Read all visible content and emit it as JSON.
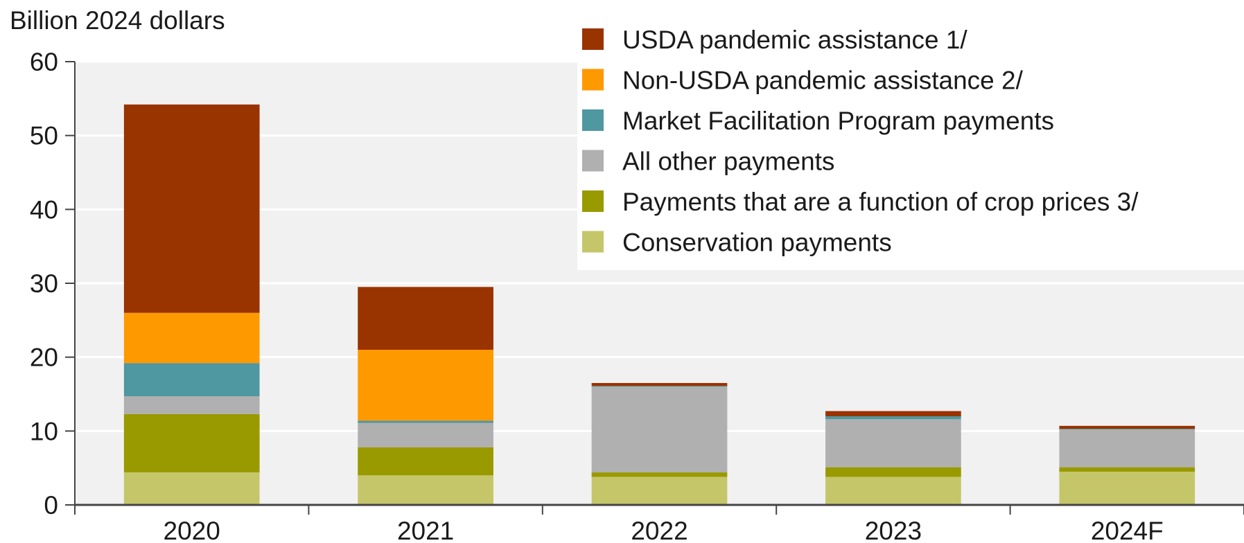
{
  "chart_data": {
    "type": "bar",
    "stacked": true,
    "ylabel": "Billion 2024 dollars",
    "xlabel": "",
    "ylim": [
      0,
      60
    ],
    "yticks": [
      0,
      10,
      20,
      30,
      40,
      50,
      60
    ],
    "grid": "horizontal",
    "legend_position": "top-right",
    "categories": [
      "2020",
      "2021",
      "2022",
      "2023",
      "2024F"
    ],
    "series": [
      {
        "name": "Conservation payments",
        "color": "#c5c66a",
        "values": [
          4.4,
          4.0,
          3.8,
          3.8,
          4.5
        ]
      },
      {
        "name": "Payments that are a function of crop prices 3/",
        "color": "#999900",
        "values": [
          7.9,
          3.8,
          0.6,
          1.3,
          0.6
        ]
      },
      {
        "name": "All other payments",
        "color": "#b0b0b0",
        "values": [
          2.4,
          3.3,
          11.6,
          6.5,
          5.1
        ]
      },
      {
        "name": "Market Facilitation Program payments",
        "color": "#4f97a1",
        "values": [
          4.5,
          0.3,
          0.1,
          0.4,
          0.1
        ]
      },
      {
        "name": "Non-USDA pandemic assistance 2/",
        "color": "#ff9900",
        "values": [
          6.8,
          9.6,
          0.0,
          0.0,
          0.0
        ]
      },
      {
        "name": "USDA pandemic assistance 1/",
        "color": "#993300",
        "values": [
          28.2,
          8.5,
          0.4,
          0.7,
          0.4
        ]
      }
    ]
  }
}
